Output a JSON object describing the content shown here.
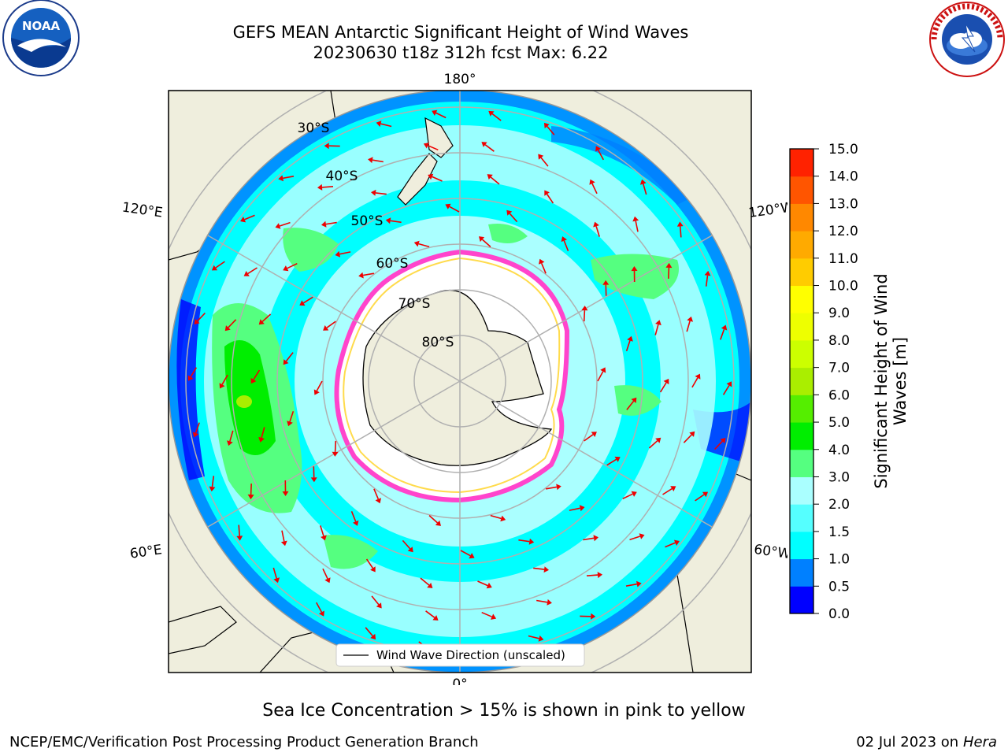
{
  "header": {
    "title_line1": "GEFS MEAN Antarctic Significant Height of Wind Waves",
    "title_line2": "20230630 t18z 312h fcst   Max: 6.22"
  },
  "logos": {
    "left": {
      "name": "noaa-logo",
      "text": "NOAA"
    },
    "right": {
      "name": "nws-logo",
      "text": "NATIONAL WEATHER SERVICE"
    }
  },
  "map": {
    "longitude_labels": {
      "top": "180°",
      "bottom": "0°",
      "upper_left": "120°E",
      "upper_right": "120°W",
      "lower_left": "60°E",
      "lower_right": "60°W"
    },
    "latitude_labels": [
      "30°S",
      "40°S",
      "50°S",
      "60°S",
      "70°S",
      "80°S"
    ],
    "legend_label": "Wind Wave Direction (unscaled)",
    "colors": {
      "land": "#efeedd",
      "sea_ice_white": "#ffffff",
      "sea_ice_edge": "#ff44cc",
      "arrow": "#ee0000",
      "grid": "#b0b0b0"
    }
  },
  "colorbar": {
    "label": "Significant Height of Wind Waves [m]",
    "ticks": [
      "0.0",
      "0.5",
      "1.0",
      "1.5",
      "2.0",
      "3.0",
      "4.0",
      "5.0",
      "6.0",
      "7.0",
      "8.0",
      "9.0",
      "10.0",
      "11.0",
      "12.0",
      "13.0",
      "14.0",
      "15.0"
    ],
    "colors": [
      "#0000ff",
      "#0080ff",
      "#00ffff",
      "#55ffff",
      "#aaffff",
      "#55ff80",
      "#00ee00",
      "#55ee00",
      "#aaee00",
      "#ccff00",
      "#eeff00",
      "#ffff00",
      "#ffcc00",
      "#ffaa00",
      "#ff8800",
      "#ff5500",
      "#ff2200"
    ]
  },
  "footer": {
    "note": "Sea Ice Concentration > 15% is shown in pink to yellow",
    "left": "NCEP/EMC/Verification Post Processing Product Generation Branch",
    "right_date": "02 Jul 2023 on ",
    "right_machine": "Hera"
  }
}
